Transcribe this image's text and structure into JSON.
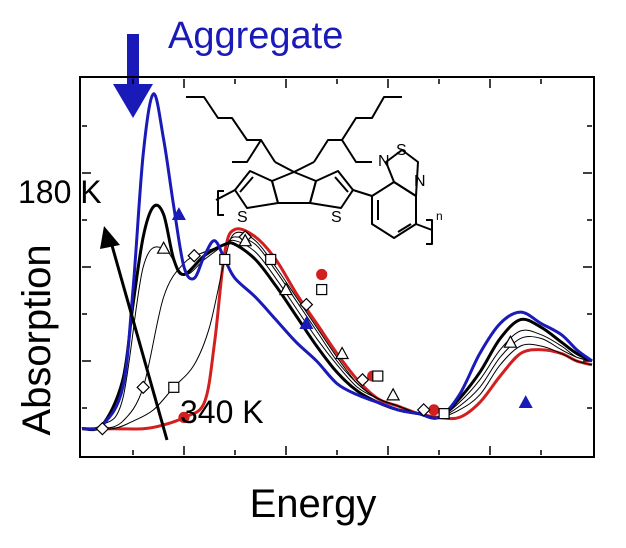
{
  "chart_data": {
    "type": "line",
    "title": "",
    "xlabel": "Energy",
    "ylabel": "Absorption",
    "x_ticks_labeled": false,
    "y_ticks_labeled": false,
    "xlim": [
      0,
      100
    ],
    "ylim": [
      0,
      100
    ],
    "grid": false,
    "legend": "none",
    "annotations": {
      "aggregate": "Aggregate",
      "high_temp": "180 K",
      "low_temp": "340 K",
      "aggregate_color": "#1a1ab8",
      "arrow_direction": "increasing absorption with decreasing temperature"
    },
    "molecule": {
      "atoms": [
        "S",
        "S",
        "N",
        "S",
        "N"
      ],
      "repeat_subscript": "n"
    },
    "series": [
      {
        "label_ref": "low_temp",
        "color": "#d21f1f",
        "marker": "circle-filled",
        "x": [
          0,
          6,
          12,
          16,
          20,
          24,
          26,
          28,
          30,
          34,
          38,
          42,
          46,
          50,
          54,
          58,
          62,
          66,
          70,
          74,
          78,
          82,
          86,
          90,
          94,
          97,
          100
        ],
        "y": [
          7,
          7,
          7,
          8,
          10,
          14,
          30,
          54,
          60,
          58,
          52,
          43,
          35,
          27,
          20,
          15,
          13,
          11,
          10,
          10,
          14,
          21,
          27,
          28,
          27,
          25,
          24
        ],
        "marker_x": [
          20,
          47,
          57,
          69
        ],
        "marker_y": [
          10,
          48,
          21,
          12
        ]
      },
      {
        "label_ref": "",
        "color": "#000000",
        "marker": "square-open",
        "x": [
          0,
          6,
          10,
          14,
          18,
          22,
          25,
          28,
          30,
          34,
          38,
          42,
          46,
          50,
          54,
          58,
          62,
          66,
          70,
          74,
          78,
          82,
          86,
          90,
          94,
          97,
          100
        ],
        "y": [
          7,
          7,
          9,
          12,
          18,
          24,
          34,
          52,
          59,
          57,
          50,
          42,
          34,
          26,
          19,
          15,
          13,
          11,
          10,
          12,
          16,
          24,
          29,
          29,
          27,
          25,
          24
        ],
        "marker_x": [
          18,
          28,
          37,
          47,
          58,
          71
        ],
        "marker_y": [
          18,
          52,
          52,
          44,
          21,
          11
        ]
      },
      {
        "label_ref": "",
        "color": "#000000",
        "marker": "diamond-open",
        "x": [
          0,
          4,
          8,
          12,
          16,
          20,
          24,
          28,
          30,
          34,
          38,
          42,
          46,
          50,
          54,
          58,
          62,
          66,
          70,
          74,
          78,
          82,
          86,
          90,
          94,
          97,
          100
        ],
        "y": [
          7,
          7,
          9,
          18,
          42,
          51,
          54,
          56,
          58,
          56,
          49,
          41,
          33,
          25,
          19,
          15,
          13,
          11,
          10,
          13,
          18,
          26,
          31,
          31,
          28,
          26,
          25
        ],
        "marker_x": [
          4,
          12,
          22,
          32,
          44,
          55,
          67
        ],
        "marker_y": [
          7,
          18,
          53,
          58,
          40,
          20,
          12
        ]
      },
      {
        "label_ref": "",
        "color": "#000000",
        "marker": "triangle-open",
        "x": [
          0,
          4,
          8,
          12,
          16,
          20,
          24,
          28,
          30,
          34,
          38,
          42,
          46,
          50,
          54,
          58,
          62,
          66,
          70,
          74,
          78,
          82,
          86,
          90,
          94,
          97,
          100
        ],
        "y": [
          7,
          8,
          15,
          50,
          55,
          48,
          52,
          56,
          57,
          54,
          47,
          39,
          31,
          24,
          18,
          15,
          13,
          11,
          10,
          14,
          20,
          28,
          33,
          32,
          29,
          26,
          25
        ],
        "marker_x": [
          16,
          32,
          40,
          51,
          61,
          84
        ],
        "marker_y": [
          55,
          57,
          44,
          27,
          16,
          30
        ]
      },
      {
        "label_ref": "",
        "color": "#000000",
        "marker": "none",
        "x": [
          0,
          4,
          8,
          10,
          12,
          14,
          16,
          18,
          20,
          24,
          28,
          30,
          34,
          38,
          42,
          46,
          50,
          54,
          58,
          62,
          66,
          70,
          74,
          78,
          82,
          86,
          90,
          94,
          97,
          100
        ],
        "y": [
          7,
          8,
          20,
          40,
          58,
          66,
          64,
          52,
          48,
          53,
          56,
          56,
          52,
          45,
          37,
          29,
          22,
          17,
          14,
          12,
          11,
          10,
          15,
          22,
          31,
          36,
          34,
          30,
          27,
          25
        ],
        "marker_x": [],
        "marker_y": []
      },
      {
        "label_ref": "high_temp",
        "color": "#1a1ab8",
        "marker": "triangle-filled",
        "x": [
          0,
          4,
          8,
          10,
          12,
          14,
          16,
          18,
          20,
          22,
          24,
          26,
          28,
          30,
          34,
          38,
          42,
          46,
          50,
          54,
          58,
          62,
          66,
          70,
          74,
          78,
          82,
          86,
          90,
          94,
          97,
          100
        ],
        "y": [
          7,
          8,
          18,
          44,
          80,
          96,
          84,
          66,
          50,
          47,
          53,
          57,
          52,
          47,
          42,
          36,
          30,
          25,
          19,
          16,
          14,
          12,
          11,
          10,
          16,
          27,
          35,
          38,
          35,
          32,
          28,
          25
        ],
        "marker_x": [
          19,
          44,
          87
        ],
        "marker_y": [
          64,
          35,
          14
        ]
      }
    ]
  }
}
